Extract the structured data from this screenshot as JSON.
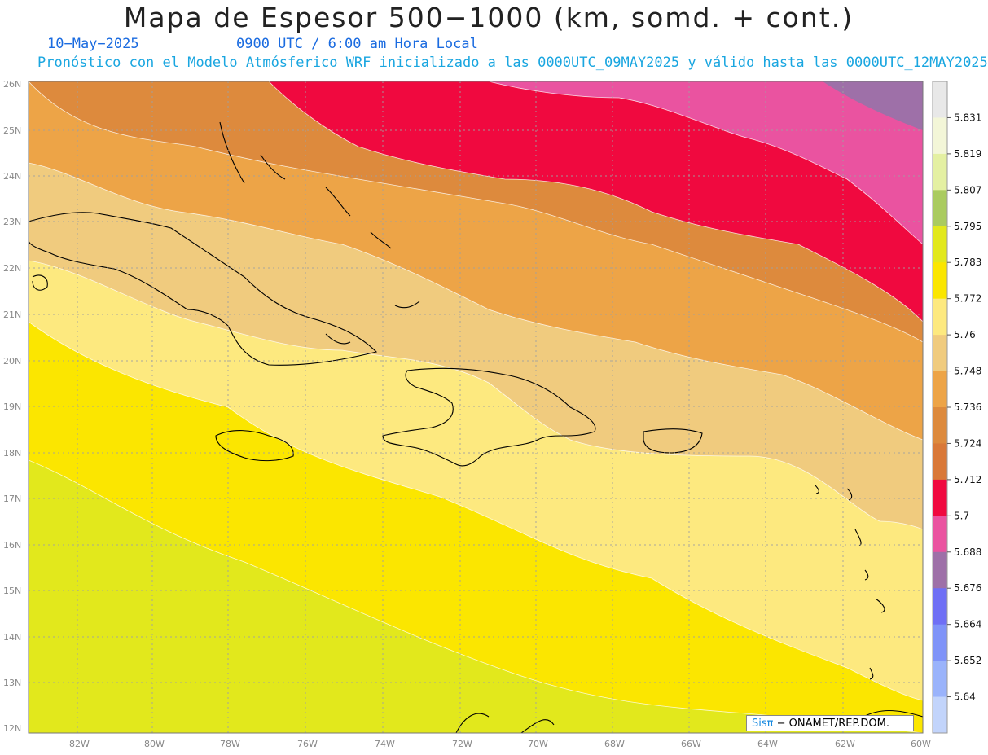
{
  "header": {
    "title": "Mapa de Espesor 500−1000 (km, somd. + cont.)",
    "date": "10−May−2025",
    "time": "0900 UTC / 6:00 am Hora Local",
    "forecast_note": "Pronóstico con el Modelo Atmósferico WRF inicializado a las 0000UTC_09MAY2025 y válido hasta las  0000UTC_12MAY2025"
  },
  "axes": {
    "lat_labels": [
      "26N",
      "25N",
      "24N",
      "23N",
      "22N",
      "21N",
      "20N",
      "19N",
      "18N",
      "17N",
      "16N",
      "15N",
      "14N",
      "13N",
      "12N"
    ],
    "lon_labels": [
      "82W",
      "80W",
      "78W",
      "76W",
      "74W",
      "72W",
      "70W",
      "68W",
      "66W",
      "64W",
      "62W",
      "60W"
    ]
  },
  "colorbar": {
    "labels": [
      "5.831",
      "5.819",
      "5.807",
      "5.795",
      "5.783",
      "5.772",
      "5.76",
      "5.748",
      "5.736",
      "5.724",
      "5.712",
      "5.7",
      "5.688",
      "5.676",
      "5.664",
      "5.652",
      "5.64"
    ],
    "colors": [
      "#e8e8e8",
      "#f3f6d8",
      "#e4f0a2",
      "#aacb5f",
      "#e2e81c",
      "#fbe600",
      "#fde97f",
      "#f0cb7e",
      "#eda447",
      "#dd8a3d",
      "#d97838",
      "#f0093f",
      "#ea53a0",
      "#9e70a8",
      "#6f6ff5",
      "#7f93f8",
      "#9ab3fb",
      "#c2d4fb"
    ]
  },
  "map": {
    "thickness_band_colors": {
      "5.712": "#d97838",
      "5.724": "#dd8a3d",
      "5.736": "#eda447",
      "5.748": "#f0cb7e",
      "5.76": "#fde97f",
      "5.772": "#fbe600",
      "5.783": "#e2e81c",
      "5.7": "#f0093f",
      "5.688": "#ea53a0",
      "5.676": "#9e70a8"
    }
  },
  "footer": {
    "logo": "Sisπ",
    "text": " − ONAMET/REP.DOM."
  }
}
